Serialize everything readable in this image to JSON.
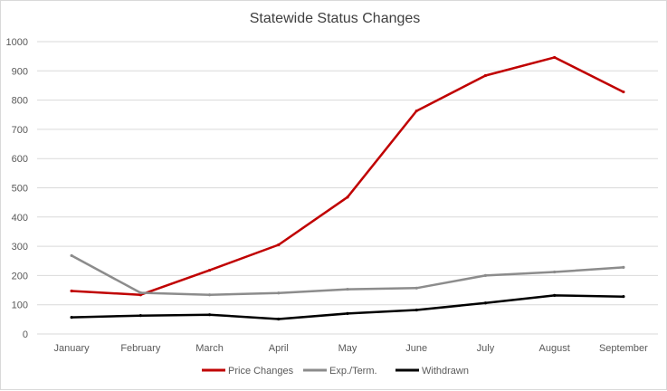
{
  "chart_data": {
    "type": "line",
    "title": "Statewide Status Changes",
    "categories": [
      "January",
      "February",
      "March",
      "April",
      "May",
      "June",
      "July",
      "August",
      "September"
    ],
    "ylim": [
      0,
      1000
    ],
    "yticks": [
      0,
      100,
      200,
      300,
      400,
      500,
      600,
      700,
      800,
      900,
      1000
    ],
    "grid": true,
    "legend_position": "bottom",
    "series": [
      {
        "name": "Price Changes",
        "color": "#c00000",
        "values": [
          147,
          134,
          218,
          305,
          468,
          763,
          884,
          946,
          828
        ]
      },
      {
        "name": "Exp./Term.",
        "color": "#8c8c8c",
        "values": [
          268,
          141,
          134,
          140,
          153,
          157,
          200,
          212,
          228
        ]
      },
      {
        "name": "Withdrawn",
        "color": "#000000",
        "values": [
          57,
          63,
          66,
          51,
          70,
          82,
          106,
          132,
          128
        ]
      }
    ]
  }
}
